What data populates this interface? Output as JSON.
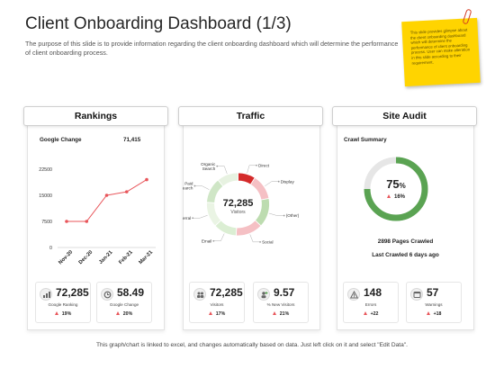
{
  "title": "Client Onboarding Dashboard (1/3)",
  "subtitle": "The purpose of this slide is to provide information regarding the client onboarding dashboard which will determine the performance of client onboarding process.",
  "note": {
    "text": "This slide provides glimpse about the client onboarding dashboard which will determine the performance of client onboarding process. User can make alteration in this slide according to their requirement."
  },
  "footer": "This graph/chart is linked to excel, and changes automatically based on data. Just left click on it and select \"Edit Data\".",
  "colors": {
    "line": "#e8555a",
    "green": "#5aa352",
    "red": "#d42a2a",
    "light_green": "#bddcb0",
    "pink": "#f5c0c4"
  },
  "rankings": {
    "header": "Rankings",
    "metric_label": "Google Change",
    "metric_value": "71,415",
    "stats": [
      {
        "icon": "ranking-icon",
        "value": "72,285",
        "label": "Google Ranking",
        "change": "19%"
      },
      {
        "icon": "google-change-icon",
        "value": "58.49",
        "label": "Google Change",
        "change": "20%"
      }
    ]
  },
  "traffic": {
    "header": "Traffic",
    "center_value": "72,285",
    "center_label": "Visitors",
    "stats": [
      {
        "icon": "visitors-icon",
        "value": "72,285",
        "label": "Visitors",
        "change": "17%"
      },
      {
        "icon": "new-visitors-icon",
        "value": "9.57",
        "label": "% New Visitors",
        "change": "21%"
      }
    ]
  },
  "site_audit": {
    "header": "Site Audit",
    "section_label": "Crawl Summary",
    "gauge_value": "75",
    "gauge_unit": "%",
    "gauge_change": "16%",
    "pages_crawled": "2898 Pages Crawled",
    "last_crawled": "Last Crawled 6 days ago",
    "stats": [
      {
        "icon": "errors-icon",
        "value": "148",
        "label": "Errors",
        "change": "+22"
      },
      {
        "icon": "warnings-icon",
        "value": "57",
        "label": "Warnings",
        "change": "+18"
      }
    ]
  },
  "chart_data": [
    {
      "type": "line",
      "categories": [
        "Nov-20",
        "Dec-20",
        "Jan-21",
        "Feb-21",
        "Mar-21"
      ],
      "series": [
        {
          "values": [
            7500,
            7500,
            15000,
            16000,
            19500
          ]
        }
      ],
      "yticks": [
        "0",
        "7500",
        "15000",
        "22500"
      ],
      "ylim": [
        0,
        22500
      ],
      "grid": false
    },
    {
      "type": "pie",
      "categories": [
        "Direct",
        "Display",
        "(Other)",
        "Social",
        "Email",
        "Referral",
        "Paid Search",
        "Organic Search"
      ],
      "values": [
        9,
        13,
        15,
        14,
        12,
        13,
        13,
        11
      ],
      "colors": [
        "#d42a2a",
        "#f5c0c4",
        "#bddcb0",
        "#f5c0c4",
        "#dbeed3",
        "#eaf4e4",
        "#cfe6c6",
        "#e7f2e1"
      ]
    },
    {
      "type": "pie",
      "categories": [
        "Crawled"
      ],
      "values": [
        75
      ],
      "ylim": [
        0,
        100
      ]
    }
  ]
}
